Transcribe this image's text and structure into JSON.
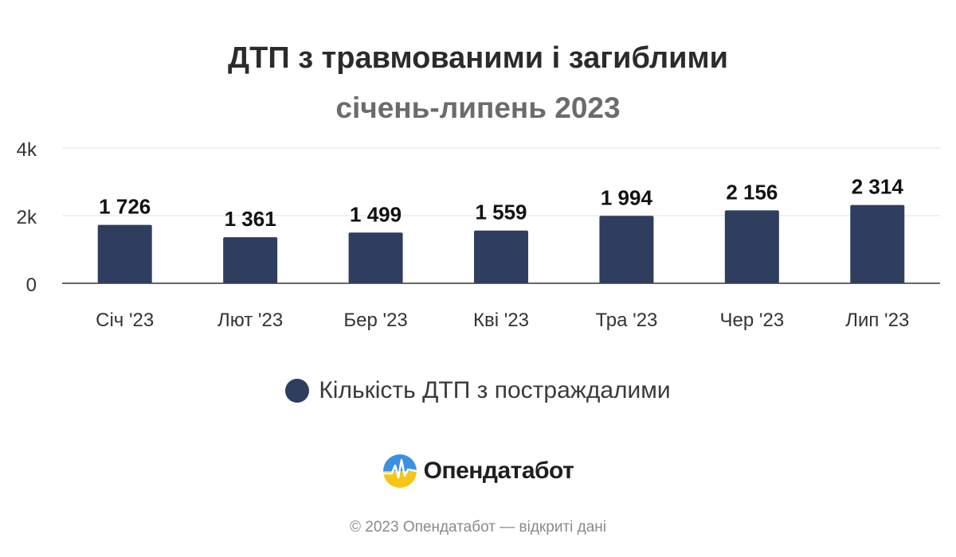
{
  "chart_data": {
    "type": "bar",
    "title": "ДТП з травмованими і загиблими",
    "subtitle": "січень-липень 2023",
    "categories": [
      "Січ '23",
      "Лют '23",
      "Бер '23",
      "Кві '23",
      "Тра '23",
      "Чер '23",
      "Лип '23"
    ],
    "series": [
      {
        "name": "Кількість ДТП з постраждалими",
        "values": [
          1726,
          1361,
          1499,
          1559,
          1994,
          2156,
          2314
        ],
        "labels": [
          "1 726",
          "1 361",
          "1 499",
          "1 559",
          "1 994",
          "2 156",
          "2 314"
        ]
      }
    ],
    "ylim": [
      0,
      4000
    ],
    "yticks": [
      0,
      2000,
      4000
    ],
    "ytick_labels": [
      "0",
      "2k",
      "4k"
    ],
    "grid": true,
    "legend_position": "bottom-center",
    "bar_color": "#2f3e5e"
  },
  "brand": {
    "name": "Опендатабот",
    "logo_icon": "opendatabot-logo-icon"
  },
  "footer": "© 2023 Опендатабот — відкриті дані"
}
